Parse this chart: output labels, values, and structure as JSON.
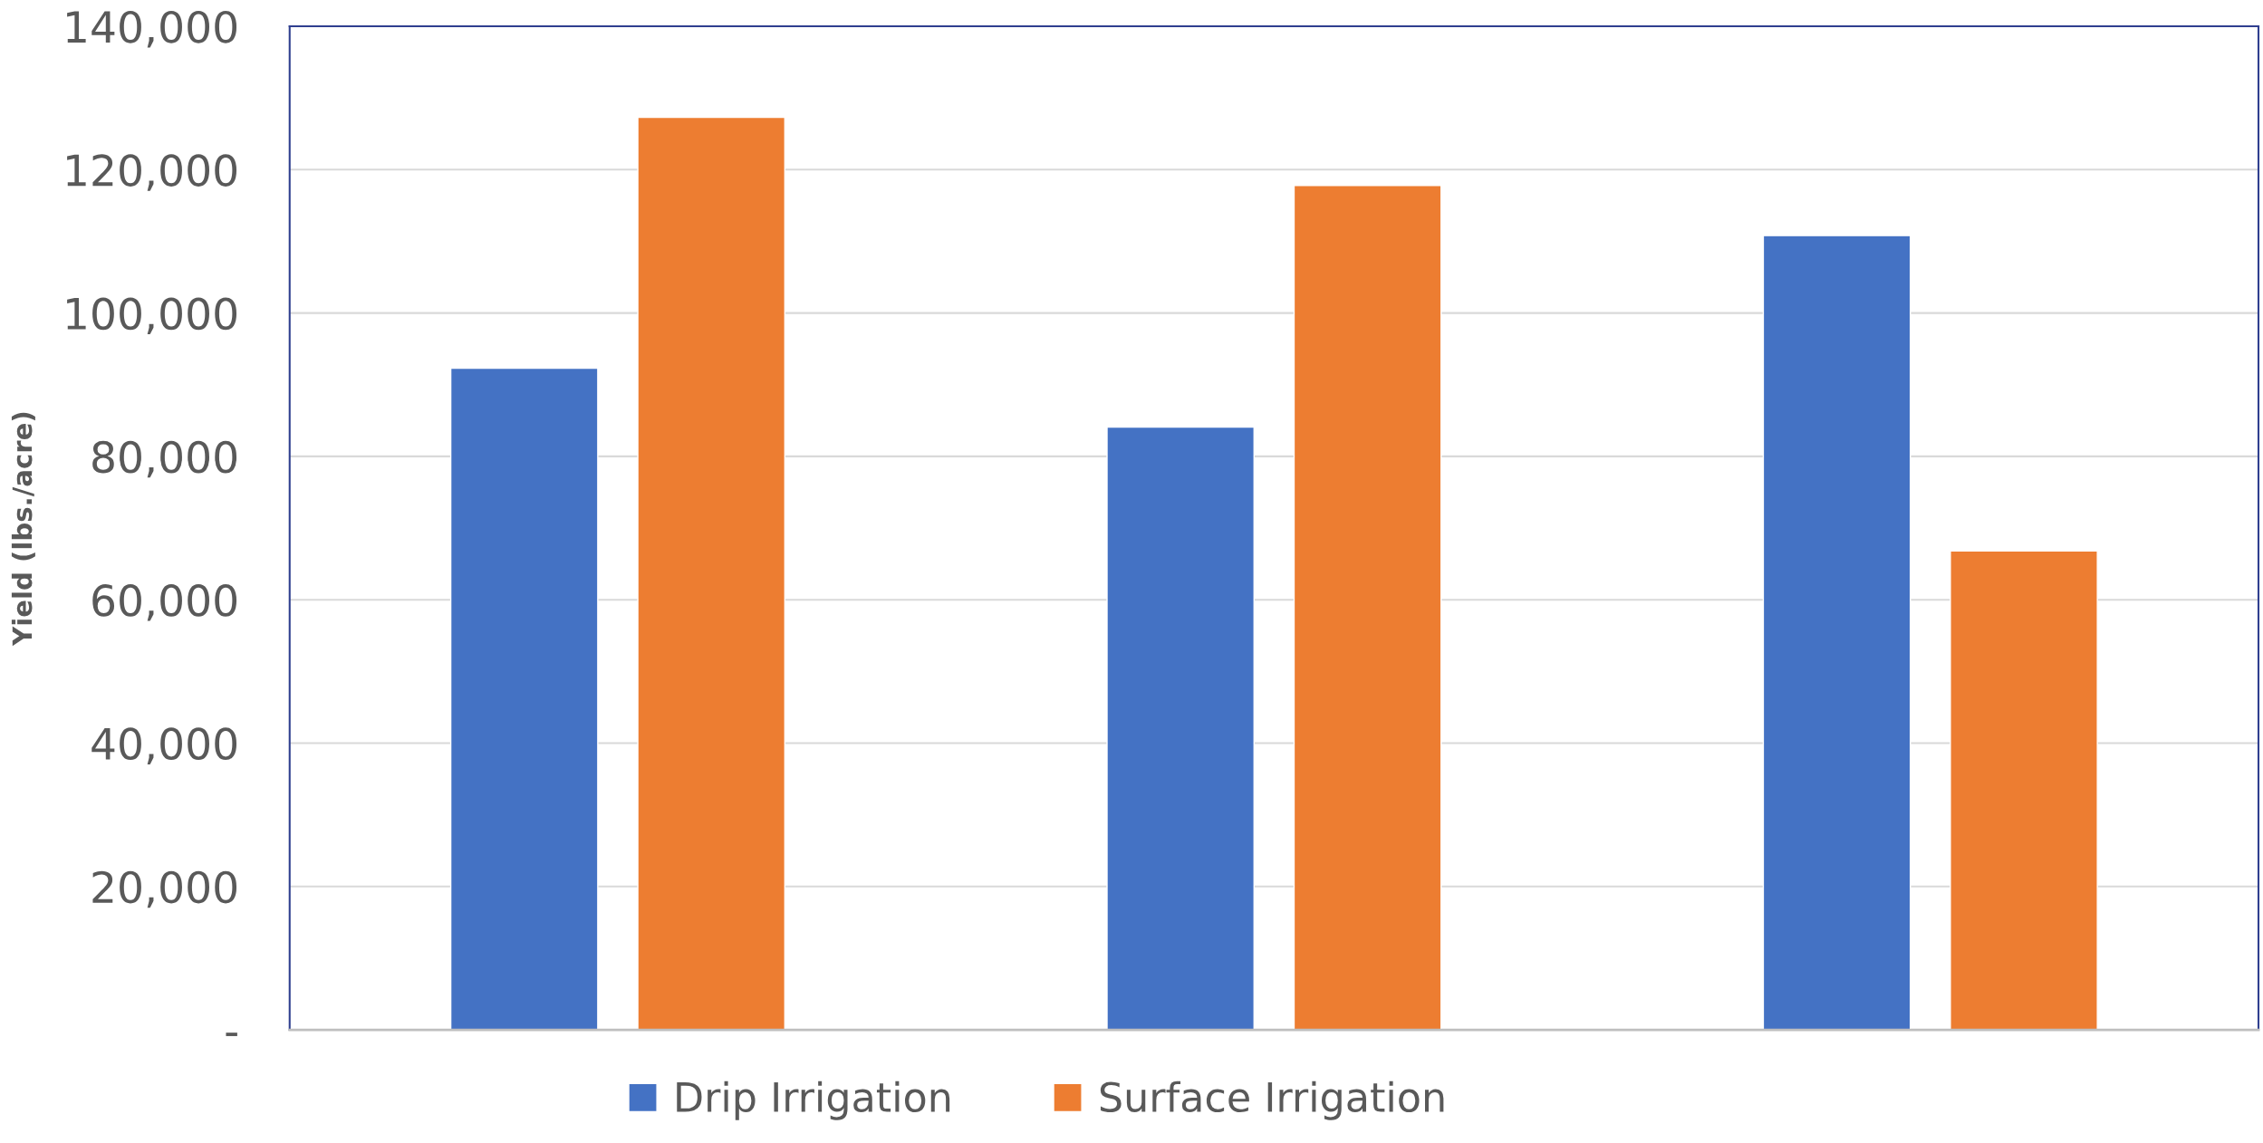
{
  "chart_data": {
    "type": "bar",
    "ylabel": "Yield (lbs./acre)",
    "categories": [
      null,
      null,
      null
    ],
    "series": [
      {
        "name": "Drip Irrigation",
        "color": "#4472c4",
        "values": [
          92300,
          84100,
          110800
        ]
      },
      {
        "name": "Surface Irrigation",
        "color": "#ed7d31",
        "values": [
          127300,
          117800,
          66800
        ]
      }
    ],
    "ylim": [
      0,
      140000
    ],
    "yticks": [
      {
        "value": 0,
        "label": "-"
      },
      {
        "value": 20000,
        "label": "20,000"
      },
      {
        "value": 40000,
        "label": "40,000"
      },
      {
        "value": 60000,
        "label": "60,000"
      },
      {
        "value": 80000,
        "label": "80,000"
      },
      {
        "value": 100000,
        "label": "100,000"
      },
      {
        "value": 120000,
        "label": "120,000"
      },
      {
        "value": 140000,
        "label": "140,000"
      }
    ],
    "grid": "y",
    "legend": "bottom"
  }
}
